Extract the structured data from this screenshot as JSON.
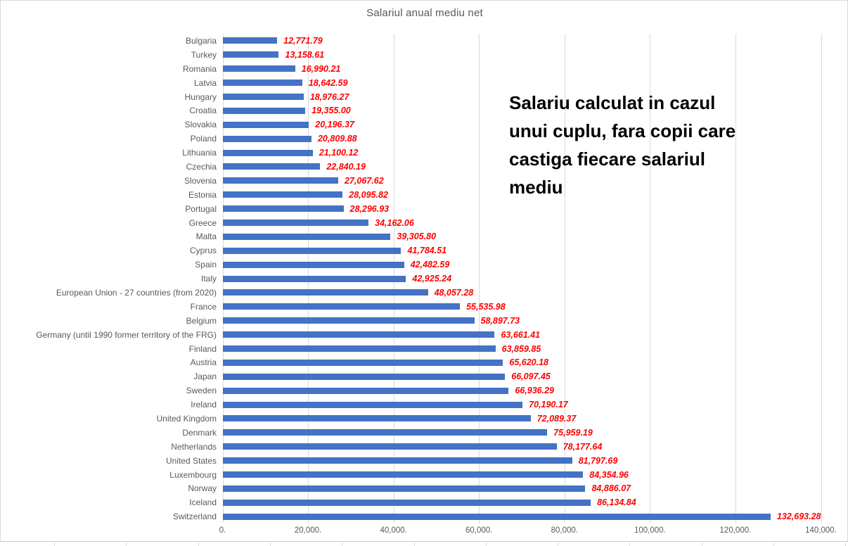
{
  "chart_data": {
    "type": "bar",
    "orientation": "horizontal",
    "title": "Salariul anual mediu net",
    "categories": [
      "Bulgaria",
      "Turkey",
      "Romania",
      "Latvia",
      "Hungary",
      "Croatia",
      "Slovakia",
      "Poland",
      "Lithuania",
      "Czechia",
      "Slovenia",
      "Estonia",
      "Portugal",
      "Greece",
      "Malta",
      "Cyprus",
      "Spain",
      "Italy",
      "European Union - 27 countries (from 2020)",
      "France",
      "Belgium",
      "Germany (until 1990 former territory of the FRG)",
      "Finland",
      "Austria",
      "Japan",
      "Sweden",
      "Ireland",
      "United Kingdom",
      "Denmark",
      "Netherlands",
      "United States",
      "Luxembourg",
      "Norway",
      "Iceland",
      "Switzerland"
    ],
    "values": [
      12771.79,
      13158.61,
      16990.21,
      18642.59,
      18976.27,
      19355.0,
      20196.37,
      20809.88,
      21100.12,
      22840.19,
      27067.62,
      28095.82,
      28296.93,
      34162.06,
      39305.8,
      41784.51,
      42482.59,
      42925.24,
      48057.28,
      55535.98,
      58897.73,
      63661.41,
      63859.85,
      65620.18,
      66097.45,
      66936.29,
      70190.17,
      72089.37,
      75959.19,
      78177.64,
      81797.69,
      84354.96,
      84886.07,
      86134.84,
      132693.28
    ],
    "value_labels": [
      "12,771.79",
      "13,158.61",
      "16,990.21",
      "18,642.59",
      "18,976.27",
      "19,355.00",
      "20,196.37",
      "20,809.88",
      "21,100.12",
      "22,840.19",
      "27,067.62",
      "28,095.82",
      "28,296.93",
      "34,162.06",
      "39,305.80",
      "41,784.51",
      "42,482.59",
      "42,925.24",
      "48,057.28",
      "55,535.98",
      "58,897.73",
      "63,661.41",
      "63,859.85",
      "65,620.18",
      "66,097.45",
      "66,936.29",
      "70,190.17",
      "72,089.37",
      "75,959.19",
      "78,177.64",
      "81,797.69",
      "84,354.96",
      "84,886.07",
      "86,134.84",
      "132,693.28"
    ],
    "xlabel": "",
    "ylabel": "",
    "x_axis": {
      "min": 0,
      "max": 140000,
      "tick_step": 20000,
      "tick_labels": [
        "0.",
        "20,000.",
        "40,000.",
        "60,000.",
        "80,000.",
        "100,000.",
        "120,000.",
        "140,000."
      ],
      "grid": true
    },
    "legend": "none",
    "annotation": {
      "lines": [
        "Salariu calculat in cazul",
        "unui cuplu, fara copii care",
        "castiga fiecare salariul",
        "mediu"
      ]
    },
    "colors": {
      "bar": "#4472C4",
      "value_label": "#FF0000",
      "axis_text": "#595959",
      "title_text": "#595959",
      "gridline": "#D9D9D9",
      "annotation_text": "#000000",
      "chart_border": "#D9D9D9"
    }
  }
}
